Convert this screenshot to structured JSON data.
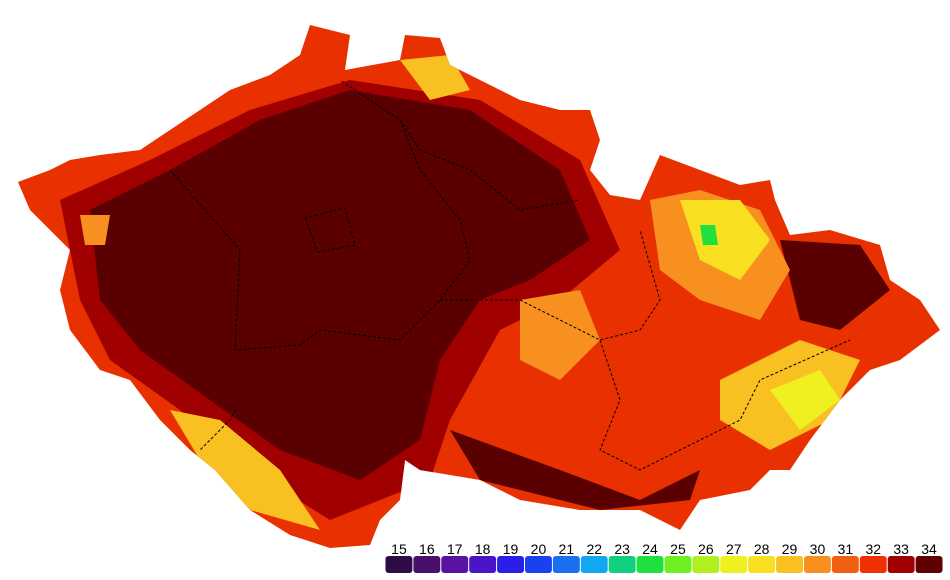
{
  "legend": {
    "items": [
      {
        "value": 15,
        "color": "#2e0b45"
      },
      {
        "value": 16,
        "color": "#4a0f6b"
      },
      {
        "value": 17,
        "color": "#5a12a0"
      },
      {
        "value": 18,
        "color": "#4a14c8"
      },
      {
        "value": 19,
        "color": "#2a1ee8"
      },
      {
        "value": 20,
        "color": "#1a40f0"
      },
      {
        "value": 21,
        "color": "#1a70f0"
      },
      {
        "value": 22,
        "color": "#10a8f0"
      },
      {
        "value": 23,
        "color": "#10d080"
      },
      {
        "value": 24,
        "color": "#20e040"
      },
      {
        "value": 25,
        "color": "#70f020"
      },
      {
        "value": 26,
        "color": "#b0f020"
      },
      {
        "value": 27,
        "color": "#f0f020"
      },
      {
        "value": 28,
        "color": "#f8e020"
      },
      {
        "value": 29,
        "color": "#f8c020"
      },
      {
        "value": 30,
        "color": "#f89020"
      },
      {
        "value": 31,
        "color": "#f06010"
      },
      {
        "value": 32,
        "color": "#f03000"
      },
      {
        "value": 33,
        "color": "#a00000"
      },
      {
        "value": 34,
        "color": "#600000"
      }
    ]
  }
}
